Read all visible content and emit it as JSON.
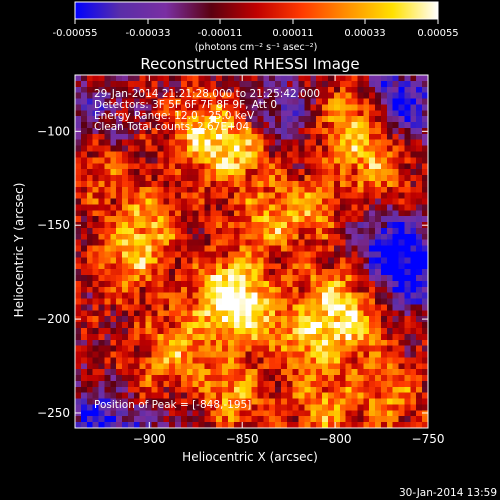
{
  "chart_data": {
    "type": "heatmap",
    "title": "Reconstructed RHESSI Image",
    "xlabel": "Heliocentric X (arcsec)",
    "ylabel": "Heliocentric Y (arcsec)",
    "xlim": [
      -940,
      -750
    ],
    "ylim": [
      -258,
      -70
    ],
    "x_ticks": [
      -900,
      -850,
      -800,
      -750
    ],
    "y_ticks": [
      -100,
      -150,
      -200,
      -250
    ],
    "colorbar": {
      "range": [
        -0.00055,
        0.00055
      ],
      "ticks": [
        "-0.00055",
        "-0.00033",
        "-0.00011",
        "0.00011",
        "0.00033",
        "0.00055"
      ],
      "label": "(photons cm⁻² s⁻¹ asec⁻²)",
      "colors": [
        "#0000ff",
        "#5a2ea8",
        "#7a2fa3",
        "#5b0010",
        "#c00000",
        "#ff3a00",
        "#ff9000",
        "#ffe000",
        "#ffffff"
      ]
    },
    "annotations": [
      "29-Jan-2014 21:21:28.000 to 21:25:42.000",
      "Detectors: 3F 5F 6F 7F 8F 9F, Att 0",
      "Energy Range: 12.0 - 25.0 keV",
      "Clean     Total counts: 2.67E+04"
    ],
    "peak_label": "Position of Peak = [-848,-195]",
    "peak": [
      -848,
      -195
    ],
    "hotspots": [
      {
        "x": -870,
        "y": -100,
        "a": 0.9
      },
      {
        "x": -852,
        "y": -112,
        "a": 0.8
      },
      {
        "x": -790,
        "y": -95,
        "a": 1.0
      },
      {
        "x": -778,
        "y": -120,
        "a": 0.7
      },
      {
        "x": -900,
        "y": -148,
        "a": 0.7
      },
      {
        "x": -912,
        "y": -170,
        "a": 0.75
      },
      {
        "x": -838,
        "y": -150,
        "a": 0.6
      },
      {
        "x": -815,
        "y": -140,
        "a": 0.65
      },
      {
        "x": -860,
        "y": -185,
        "a": 0.9
      },
      {
        "x": -848,
        "y": -195,
        "a": 1.0
      },
      {
        "x": -800,
        "y": -185,
        "a": 0.7
      },
      {
        "x": -815,
        "y": -210,
        "a": 0.8
      },
      {
        "x": -790,
        "y": -205,
        "a": 0.7
      },
      {
        "x": -885,
        "y": -215,
        "a": 0.75
      },
      {
        "x": -900,
        "y": -240,
        "a": 0.7
      },
      {
        "x": -855,
        "y": -240,
        "a": 0.75
      },
      {
        "x": -805,
        "y": -248,
        "a": 0.7
      },
      {
        "x": -770,
        "y": -240,
        "a": 0.6
      },
      {
        "x": -925,
        "y": -120,
        "a": 0.45
      }
    ],
    "coldspots": [
      {
        "x": -765,
        "y": -85,
        "a": 1.0
      },
      {
        "x": -770,
        "y": -160,
        "a": 0.9
      },
      {
        "x": -758,
        "y": -178,
        "a": 0.8
      },
      {
        "x": -925,
        "y": -255,
        "a": 0.9
      },
      {
        "x": -895,
        "y": -250,
        "a": 0.6
      },
      {
        "x": -930,
        "y": -90,
        "a": 0.5
      },
      {
        "x": -830,
        "y": -90,
        "a": 0.6
      }
    ]
  },
  "footer": {
    "date": "30-Jan-2014 13:59"
  }
}
